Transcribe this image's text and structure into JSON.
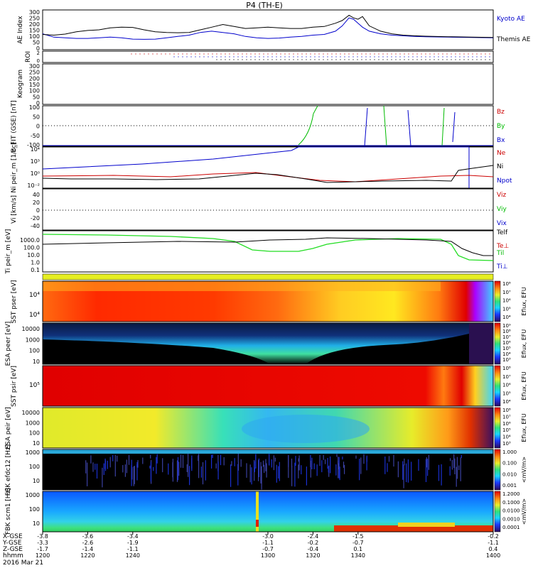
{
  "title": "P4 (TH-E)",
  "date_label": "2016 Mar 21",
  "colors": {
    "black": "#000000",
    "red": "#cc0000",
    "green": "#00bb00",
    "blue": "#0000cc",
    "ion_green": "#22dd22"
  },
  "chart_data": [
    {
      "id": "ae",
      "type": "line",
      "ylabel": "AE Index",
      "ylim": [
        0,
        300
      ],
      "ticks": [
        "300",
        "250",
        "200",
        "150",
        "100",
        "50",
        "0"
      ],
      "x": [
        1200,
        1205,
        1210,
        1215,
        1220,
        1225,
        1230,
        1235,
        1240,
        1245,
        1250,
        1255,
        1260,
        1265,
        1270,
        1275,
        1280,
        1285,
        1290,
        1295,
        1300,
        1305,
        1310,
        1315,
        1320,
        1325,
        1330,
        1333,
        1336,
        1338,
        1340,
        1342,
        1345,
        1350,
        1355,
        1360,
        1365,
        1370,
        1380,
        1390,
        1400
      ],
      "series": [
        {
          "name": "Kyoto AE",
          "color": "#0000cc",
          "values": [
            120,
            95,
            90,
            85,
            85,
            90,
            95,
            90,
            80,
            78,
            80,
            90,
            100,
            110,
            130,
            140,
            130,
            120,
            100,
            90,
            85,
            88,
            95,
            100,
            110,
            115,
            140,
            180,
            240,
            230,
            200,
            170,
            140,
            120,
            110,
            105,
            100,
            98,
            95,
            92,
            90
          ]
        },
        {
          "name": "Themis AE",
          "color": "#000000",
          "values": [
            115,
            110,
            118,
            135,
            145,
            150,
            165,
            170,
            168,
            150,
            135,
            130,
            128,
            130,
            150,
            170,
            190,
            175,
            160,
            165,
            170,
            165,
            160,
            160,
            170,
            175,
            200,
            220,
            260,
            240,
            230,
            250,
            180,
            140,
            120,
            110,
            105,
            102,
            98,
            95,
            92
          ]
        }
      ]
    },
    {
      "id": "roi",
      "type": "scatter",
      "ylabel": "ROI",
      "ticks": [
        "2",
        "1",
        "0"
      ],
      "note": "dotted region-of-interest markers"
    },
    {
      "id": "keogram",
      "type": "line",
      "ylabel": "Keogram",
      "ylim": [
        0,
        300
      ],
      "ticks": [
        "300",
        "250",
        "200",
        "150",
        "100",
        "50",
        "0"
      ]
    },
    {
      "id": "bfit",
      "type": "line",
      "ylabel": "B_FIT (GSE) [nT]",
      "ylim": [
        -100,
        100
      ],
      "ticks": [
        "100",
        "50",
        "0",
        "-50",
        "-100"
      ],
      "legend": [
        "Bz",
        "By",
        "Bx"
      ]
    },
    {
      "id": "ni",
      "type": "line",
      "ylabel": "Ni peir_m [1/cc]",
      "log": true,
      "ticks": [
        "10⁴",
        "10³",
        "10⁰",
        "10⁻²"
      ],
      "legend": [
        "Ne",
        "Ni",
        "Npot"
      ]
    },
    {
      "id": "vi",
      "type": "line",
      "ylabel": "Vi [km/s]",
      "ylim": [
        -50,
        50
      ],
      "ticks": [
        "40",
        "20",
        "0",
        "-20",
        "-40"
      ],
      "legend": [
        "Viz",
        "Viy",
        "Vix"
      ]
    },
    {
      "id": "ti",
      "type": "line",
      "ylabel": "Ti peir_m [eV]",
      "log": true,
      "ticks": [
        "1000.0",
        "100.0",
        "10.0",
        "1.0",
        "0.1"
      ],
      "legend": [
        "Telf",
        "Te⊥",
        "Til",
        "Ti⊥"
      ]
    },
    {
      "id": "sst_e",
      "type": "heatmap",
      "ylabel": "SST pser [eV]",
      "ticks": [
        "10⁴",
        "10⁴"
      ],
      "cbar_ticks": [
        "10⁸",
        "10⁷",
        "10⁶",
        "10⁵",
        "10⁴"
      ],
      "cbar_label": "Eflux, EFU"
    },
    {
      "id": "esa_e",
      "type": "heatmap",
      "ylabel": "ESA peer [eV]",
      "ticks": [
        "10000",
        "1000",
        "100",
        "10"
      ],
      "cbar_ticks": [
        "10⁹",
        "10⁸",
        "10⁷",
        "10⁶",
        "10⁵",
        "10⁴",
        "10³"
      ],
      "cbar_label": "Eflux, EFU"
    },
    {
      "id": "sst_i",
      "type": "heatmap",
      "ylabel": "SST psir [eV]",
      "ticks": [
        "10⁵"
      ],
      "cbar_ticks": [
        "10⁸",
        "10⁷",
        "10⁶",
        "10⁵",
        "10⁴"
      ],
      "cbar_label": "Eflux, EFU"
    },
    {
      "id": "esa_i",
      "type": "heatmap",
      "ylabel": "ESA peir [eV]",
      "ticks": [
        "10000",
        "1000",
        "100",
        "10"
      ],
      "cbar_ticks": [
        "10⁸",
        "10⁷",
        "10⁶",
        "10⁵",
        "10⁴",
        "10³"
      ],
      "cbar_label": "Eflux, EFU"
    },
    {
      "id": "fbk_e",
      "type": "heatmap",
      "ylabel": "FBK efdc12 [Hz]",
      "ticks": [
        "1000",
        "100",
        "10"
      ],
      "cbar_ticks": [
        "1.000",
        "0.100",
        "0.010",
        "0.001"
      ],
      "cbar_label": "<mV/m>"
    },
    {
      "id": "fbk_b",
      "type": "heatmap",
      "ylabel": "FBK scm1 [Hz]",
      "ticks": [
        "1000",
        "100",
        "10"
      ],
      "cbar_ticks": [
        "1.2000",
        "0.1000",
        "0.0100",
        "0.0010",
        "0.0001"
      ],
      "cbar_label": "<mV/m>"
    }
  ],
  "legends": {
    "ae": [
      "Kyoto AE",
      "Themis AE"
    ],
    "bfit": [
      "Bz",
      "By",
      "Bx"
    ],
    "ni": [
      "Ne",
      "Ni",
      "Npot"
    ],
    "vi": [
      "Viz",
      "Viy",
      "Vix"
    ],
    "ti": [
      "Telf",
      "Te⊥",
      "Til",
      "Ti⊥"
    ]
  },
  "xaxis": {
    "row_labels": [
      "X-GSE",
      "Y-GSE",
      "Z-GSE",
      "hhmm",
      "2016 Mar 21"
    ],
    "columns": [
      {
        "x": -3.8,
        "y": -3.3,
        "z": -1.7,
        "t": "1200"
      },
      {
        "x": -3.6,
        "y": -2.6,
        "z": -1.4,
        "t": "1220"
      },
      {
        "x": -3.4,
        "y": -1.9,
        "z": -1.1,
        "t": "1240"
      },
      {
        "x": -3.0,
        "y": -1.1,
        "z": -0.7,
        "t": "1300"
      },
      {
        "x": -2.4,
        "y": -0.2,
        "z": -0.4,
        "t": "1320"
      },
      {
        "x": -1.5,
        "y": -0.7,
        "z": 0.1,
        "t": "1340"
      },
      {
        "x": -0.2,
        "y": -1.1,
        "z": 0.4,
        "t": "1400"
      }
    ]
  }
}
